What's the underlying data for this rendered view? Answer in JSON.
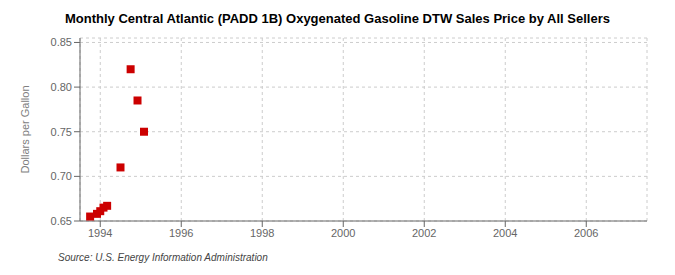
{
  "chart_data": {
    "type": "scatter",
    "title": "Monthly Central Atlantic (PADD 1B) Oxygenated Gasoline DTW Sales Price by All Sellers",
    "ylabel": "Dollars per Gallon",
    "annotations": [
      "Source: U.S. Energy Information Administration"
    ],
    "x": [
      1993.75,
      1993.92,
      1994.0,
      1994.08,
      1994.17,
      1994.5,
      1994.75,
      1994.92,
      1995.08
    ],
    "values": [
      0.655,
      0.658,
      0.661,
      0.665,
      0.667,
      0.71,
      0.82,
      0.785,
      0.75
    ],
    "xlim": [
      1993.5,
      2007.5
    ],
    "ylim": [
      0.65,
      0.855
    ],
    "xticks": [
      1994,
      1996,
      1998,
      2000,
      2002,
      2004,
      2006
    ],
    "yticks": [
      0.65,
      {
        "value": 0.7,
        "label": "0.70"
      },
      0.75,
      {
        "value": 0.8,
        "label": "0.80"
      },
      0.85
    ],
    "color": "#cc0000",
    "marker": "square",
    "grid": true
  }
}
